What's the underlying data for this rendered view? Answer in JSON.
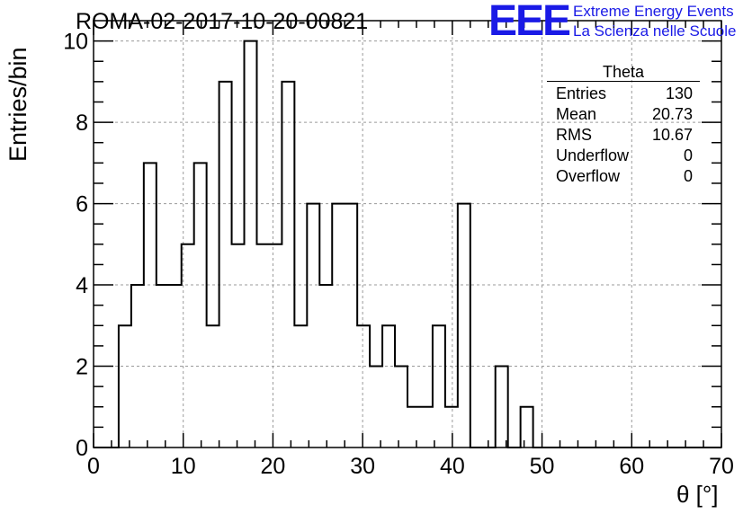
{
  "title": "ROMA-02-2017-10-20-00821",
  "logo": {
    "mark": "EEE",
    "line1": "Extreme Energy Events",
    "line2": "La Scienza nelle Scuole",
    "color": "#1a1ae6"
  },
  "stats_box": {
    "name": "Theta",
    "rows": [
      {
        "label": "Entries",
        "value": "130"
      },
      {
        "label": "Mean",
        "value": "20.73"
      },
      {
        "label": "RMS",
        "value": "10.67"
      },
      {
        "label": "Underflow",
        "value": "0"
      },
      {
        "label": "Overflow",
        "value": "0"
      }
    ]
  },
  "chart_data": {
    "type": "bar",
    "style": "step-histogram",
    "xlabel": "θ [°]",
    "ylabel": "Entries/bin",
    "xlim": [
      0,
      70
    ],
    "ylim": [
      0,
      10.5
    ],
    "bin_width": 1.4,
    "xticks": [
      0,
      10,
      20,
      30,
      40,
      50,
      60,
      70
    ],
    "yticks": [
      0,
      2,
      4,
      6,
      8,
      10
    ],
    "grid": true,
    "values": [
      0,
      0,
      3,
      4,
      7,
      4,
      4,
      5,
      7,
      3,
      9,
      5,
      10,
      5,
      5,
      9,
      3,
      6,
      4,
      6,
      6,
      3,
      2,
      3,
      2,
      1,
      1,
      3,
      1,
      6,
      0,
      0,
      2,
      0,
      1,
      0,
      0,
      0,
      0,
      0,
      0,
      0,
      0,
      0,
      0,
      0,
      0,
      0,
      0,
      0
    ]
  }
}
